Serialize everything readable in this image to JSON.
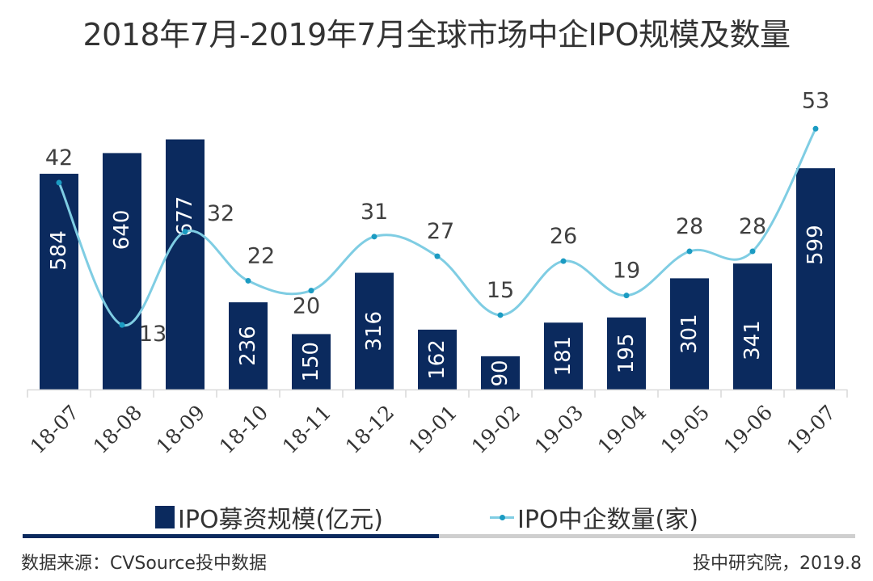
{
  "chart_data": {
    "type": "bar",
    "title": "2018年7月-2019年7月全球市场中企IPO规模及数量",
    "categories": [
      "18-07",
      "18-08",
      "18-09",
      "18-10",
      "18-11",
      "18-12",
      "19-01",
      "19-02",
      "19-03",
      "19-04",
      "19-05",
      "19-06",
      "19-07"
    ],
    "series": [
      {
        "name": "IPO募资规模(亿元)",
        "type": "bar",
        "color": "#0b2a5e",
        "values": [
          584,
          640,
          677,
          236,
          150,
          316,
          162,
          90,
          181,
          195,
          301,
          341,
          599
        ]
      },
      {
        "name": "IPO中企数量(家)",
        "type": "line",
        "smooth": true,
        "color": "#7fcde3",
        "marker_color": "#1b9bc2",
        "values": [
          42,
          13,
          32,
          22,
          20,
          31,
          27,
          15,
          26,
          19,
          28,
          28,
          53
        ]
      }
    ],
    "xlabel": "",
    "ylabel": "",
    "primary_ylim": [
      0,
      700
    ],
    "secondary_ylim": [
      0,
      60
    ],
    "grid": false,
    "legend_position": "bottom",
    "data_labels": true
  },
  "footer": {
    "source": "数据来源：CVSource投中数据",
    "credit": "投中研究院，2019.8"
  }
}
